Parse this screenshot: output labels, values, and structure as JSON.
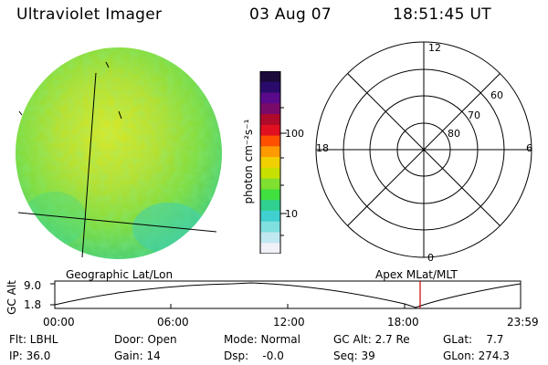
{
  "header": {
    "title": "Ultraviolet Imager",
    "date": "03 Aug 07",
    "time": "18:51:45 UT"
  },
  "colorbar": {
    "unit_label": "photon cm⁻²s⁻¹",
    "tick_100": "100",
    "tick_10": "10",
    "colors": [
      "#1b0a3a",
      "#2a0b6b",
      "#5a0a8a",
      "#7a0a6a",
      "#b00a2a",
      "#e01020",
      "#ff5000",
      "#ff9a00",
      "#f0d000",
      "#c8e000",
      "#80e030",
      "#40e040",
      "#30d090",
      "#40d0d0",
      "#80e0e0",
      "#c0e8f0",
      "#f0f0f8"
    ]
  },
  "polar": {
    "label_top": "12",
    "label_bottom": "0",
    "label_left": "18",
    "label_right": "6",
    "ring_labels": [
      "60",
      "70",
      "80"
    ]
  },
  "timeline": {
    "left_title": "Geographic Lat/Lon",
    "right_title": "Apex MLat/MLT",
    "axis_label": "GC Alt",
    "y_top": "9.0",
    "y_bottom": "1.8",
    "x_ticks": [
      "00:00",
      "06:00",
      "12:00",
      "18:00",
      "23:59"
    ],
    "marker_color": "#cc0000"
  },
  "status": {
    "flt": "Flt: LBHL",
    "ip": "IP: 36.0",
    "door": "Door: Open",
    "gain": "Gain: 14",
    "mode": "Mode: Normal",
    "dsp": "Dsp:    -0.0",
    "gcalt": "GC Alt: 2.7 Re",
    "seq": "Seq: 39",
    "glat": "GLat:    7.7",
    "glon": "GLon: 274.3"
  }
}
